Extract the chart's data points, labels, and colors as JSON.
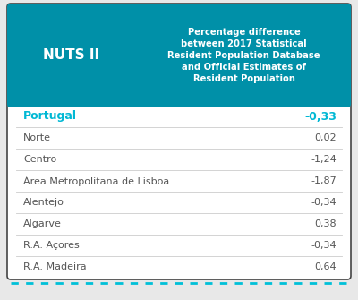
{
  "header_col1": "NUTS II",
  "header_col2": "Percentage difference\nbetween 2017 Statistical\nResident Population Database\nand Official Estimates of\nResident Population",
  "header_bg": "#0090a8",
  "header_text_color": "#ffffff",
  "rows": [
    {
      "region": "Portugal",
      "value": "-0,33",
      "bold": true,
      "region_color": "#00b8d4",
      "value_color": "#00b8d4"
    },
    {
      "region": "Norte",
      "value": "0,02",
      "bold": false,
      "region_color": "#555555",
      "value_color": "#555555"
    },
    {
      "region": "Centro",
      "value": "-1,24",
      "bold": false,
      "region_color": "#555555",
      "value_color": "#555555"
    },
    {
      "region": "Área Metropolitana de Lisboa",
      "value": "-1,87",
      "bold": false,
      "region_color": "#555555",
      "value_color": "#555555"
    },
    {
      "region": "Alentejo",
      "value": "-0,34",
      "bold": false,
      "region_color": "#555555",
      "value_color": "#555555"
    },
    {
      "region": "Algarve",
      "value": "0,38",
      "bold": false,
      "region_color": "#555555",
      "value_color": "#555555"
    },
    {
      "region": "R.A. Açores",
      "value": "-0,34",
      "bold": false,
      "region_color": "#555555",
      "value_color": "#555555"
    },
    {
      "region": "R.A. Madeira",
      "value": "0,64",
      "bold": false,
      "region_color": "#555555",
      "value_color": "#555555"
    }
  ],
  "fig_bg": "#e8e8e8",
  "table_bg": "#ffffff",
  "dotted_line_color": "#00c0d8",
  "fig_width": 4.0,
  "fig_height": 3.35,
  "dpi": 100
}
